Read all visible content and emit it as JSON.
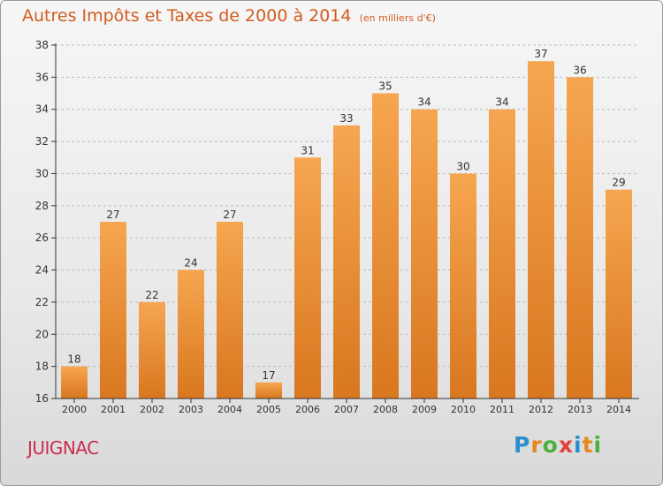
{
  "title": "Autres Impôts et Taxes de 2000 à 2014",
  "unit_note": "(en milliers d'€)",
  "commune": "JUIGNAC",
  "logo": {
    "letters": [
      "P",
      "r",
      "o",
      "x",
      "i",
      "t",
      "i"
    ],
    "colors": [
      "#2c8ecf",
      "#e8871e",
      "#4caf3d",
      "#e0413a",
      "#2c8ecf",
      "#e8871e",
      "#4caf3d"
    ]
  },
  "colors": {
    "title": "#d25c1e",
    "commune": "#cc2e4f",
    "bar_light": "#f6a650",
    "bar_dark": "#d8771f",
    "grid": "#bbbbbb",
    "axis": "#333333"
  },
  "chart_data": {
    "type": "bar",
    "categories": [
      "2000",
      "2001",
      "2002",
      "2003",
      "2004",
      "2005",
      "2006",
      "2007",
      "2008",
      "2009",
      "2010",
      "2011",
      "2012",
      "2013",
      "2014"
    ],
    "values": [
      18,
      27,
      22,
      24,
      27,
      17,
      31,
      33,
      35,
      34,
      30,
      34,
      37,
      36,
      29
    ],
    "ylim": [
      16,
      38
    ],
    "yticks": [
      16,
      18,
      20,
      22,
      24,
      26,
      28,
      30,
      32,
      34,
      36,
      38
    ],
    "grid": "horizontal-dashed",
    "data_labels": true
  }
}
